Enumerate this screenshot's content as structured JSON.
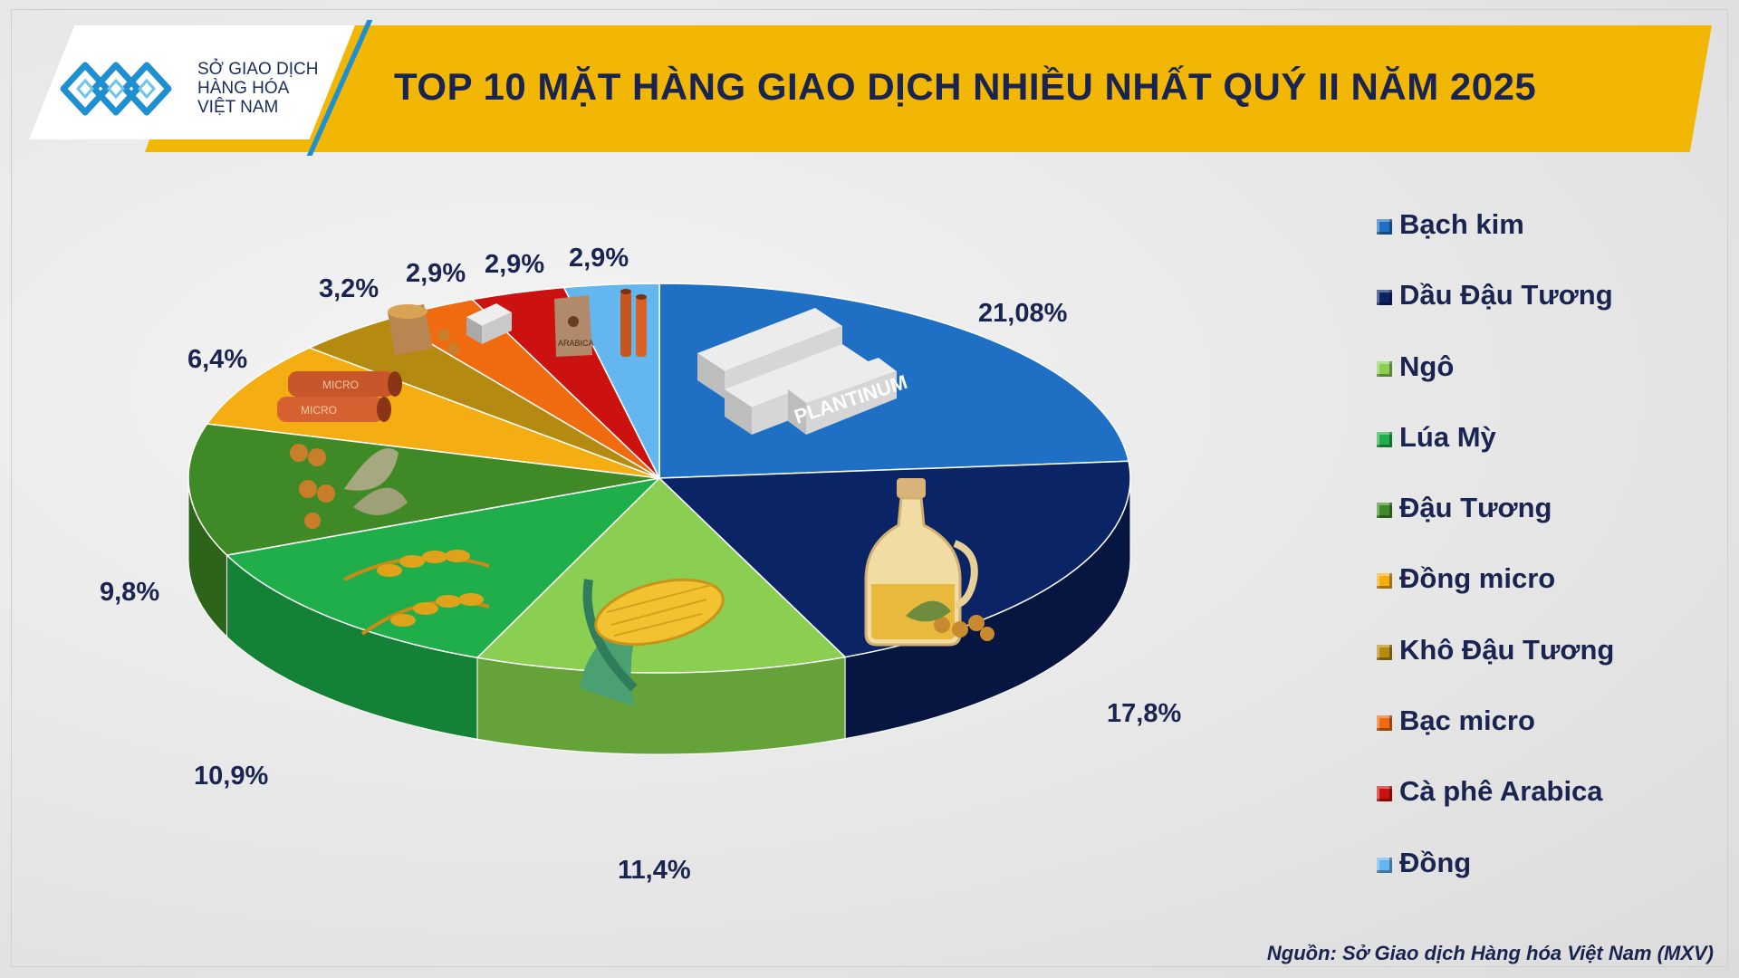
{
  "header": {
    "logo_lines": [
      "SỞ GIAO DỊCH",
      "HÀNG HÓA",
      "VIỆT NAM"
    ],
    "title": "TOP 10 MẶT HÀNG GIAO DỊCH NHIỀU NHẤT QUÝ II NĂM 2025"
  },
  "source": "Nguồn: Sở Giao dịch Hàng hóa Việt Nam (MXV)",
  "slice_images": {
    "platinum_bar_text": "PLANTINUM",
    "copper_tube_text": "MICRO",
    "coffee_bag_text": "ARABICA"
  },
  "chart_data": {
    "type": "pie",
    "title": "TOP 10 MẶT HÀNG GIAO DỊCH NHIỀU NHẤT QUÝ II NĂM 2025",
    "legend_position": "right",
    "categories": [
      "Bạch kim",
      "Dầu Đậu Tương",
      "Ngô",
      "Lúa Mỳ",
      "Đậu Tương",
      "Đồng micro",
      "Khô Đậu Tương",
      "Bạc micro",
      "Cà phê Arabica",
      "Đồng"
    ],
    "values": [
      21.08,
      17.8,
      11.4,
      10.9,
      9.8,
      6.4,
      3.2,
      2.9,
      2.9,
      2.9
    ],
    "value_labels": [
      "21,08%",
      "17,8%",
      "11,4%",
      "10,9%",
      "9,8%",
      "6,4%",
      "3,2%",
      "2,9%",
      "2,9%",
      "2,9%"
    ],
    "colors": [
      "#1f6fc4",
      "#0a2466",
      "#8bcf52",
      "#1fae4a",
      "#3f8a26",
      "#f5ad14",
      "#b58a10",
      "#f06a10",
      "#cc1111",
      "#63b6ee"
    ],
    "side_colors": [
      "#154f8f",
      "#061640",
      "#66a23a",
      "#148236",
      "#2c641a",
      "#c4870c",
      "#876609",
      "#b8500c",
      "#8f0c0c",
      "#4287b3"
    ]
  }
}
